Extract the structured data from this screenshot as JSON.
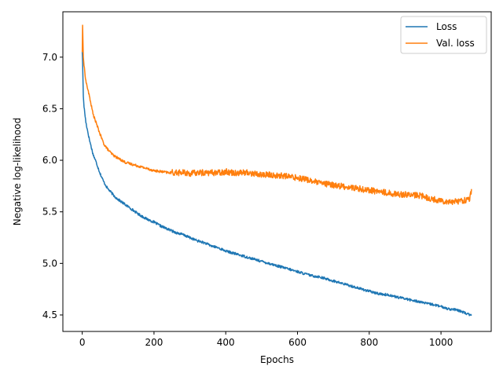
{
  "chart_data": {
    "type": "line",
    "title": "",
    "xlabel": "Epochs",
    "ylabel": "Negative log-likelihood",
    "xlim": [
      -54,
      1140
    ],
    "ylim": [
      4.34,
      7.44
    ],
    "xticks": [
      0,
      200,
      400,
      600,
      800,
      1000
    ],
    "yticks": [
      4.5,
      5.0,
      5.5,
      6.0,
      6.5,
      7.0
    ],
    "ytick_labels": [
      "4.5",
      "5.0",
      "5.5",
      "6.0",
      "6.5",
      "7.0"
    ],
    "grid": false,
    "legend_position": "top-right",
    "series": [
      {
        "name": "Loss",
        "color": "#1f77b4",
        "x": [
          0,
          1,
          3,
          5,
          10,
          20,
          30,
          40,
          50,
          60,
          70,
          80,
          90,
          100,
          120,
          140,
          160,
          180,
          200,
          220,
          240,
          260,
          280,
          300,
          320,
          340,
          360,
          380,
          400,
          420,
          440,
          460,
          480,
          500,
          520,
          540,
          560,
          580,
          600,
          620,
          640,
          660,
          680,
          700,
          720,
          740,
          760,
          780,
          800,
          820,
          840,
          860,
          880,
          900,
          920,
          940,
          960,
          980,
          1000,
          1020,
          1040,
          1060,
          1080,
          1085
        ],
        "y": [
          7.05,
          6.95,
          6.62,
          6.52,
          6.37,
          6.2,
          6.06,
          5.97,
          5.87,
          5.79,
          5.73,
          5.69,
          5.65,
          5.62,
          5.57,
          5.52,
          5.47,
          5.43,
          5.4,
          5.36,
          5.33,
          5.3,
          5.28,
          5.25,
          5.22,
          5.2,
          5.17,
          5.15,
          5.12,
          5.1,
          5.08,
          5.06,
          5.04,
          5.02,
          5.0,
          4.98,
          4.96,
          4.94,
          4.92,
          4.9,
          4.88,
          4.87,
          4.85,
          4.83,
          4.81,
          4.79,
          4.77,
          4.75,
          4.73,
          4.71,
          4.7,
          4.69,
          4.67,
          4.66,
          4.64,
          4.63,
          4.61,
          4.6,
          4.58,
          4.56,
          4.55,
          4.53,
          4.5,
          4.51
        ]
      },
      {
        "name": "Val. loss",
        "color": "#ff7f0e",
        "x": [
          0,
          1,
          3,
          5,
          10,
          20,
          30,
          40,
          50,
          60,
          70,
          80,
          90,
          100,
          120,
          140,
          160,
          180,
          200,
          220,
          240,
          260,
          280,
          300,
          320,
          340,
          360,
          380,
          400,
          420,
          440,
          460,
          480,
          500,
          520,
          540,
          560,
          580,
          600,
          620,
          640,
          660,
          680,
          700,
          720,
          740,
          760,
          780,
          800,
          820,
          840,
          860,
          880,
          900,
          920,
          940,
          960,
          980,
          1000,
          1020,
          1040,
          1060,
          1080,
          1085
        ],
        "y": [
          7.05,
          7.31,
          7.0,
          6.92,
          6.77,
          6.62,
          6.45,
          6.35,
          6.25,
          6.16,
          6.11,
          6.07,
          6.04,
          6.02,
          5.98,
          5.96,
          5.94,
          5.92,
          5.9,
          5.89,
          5.88,
          5.88,
          5.88,
          5.87,
          5.88,
          5.88,
          5.88,
          5.88,
          5.89,
          5.88,
          5.88,
          5.88,
          5.87,
          5.86,
          5.86,
          5.85,
          5.85,
          5.84,
          5.83,
          5.82,
          5.8,
          5.78,
          5.77,
          5.76,
          5.75,
          5.74,
          5.73,
          5.72,
          5.71,
          5.7,
          5.69,
          5.68,
          5.67,
          5.67,
          5.66,
          5.66,
          5.64,
          5.62,
          5.61,
          5.6,
          5.6,
          5.61,
          5.62,
          5.71
        ]
      }
    ]
  }
}
